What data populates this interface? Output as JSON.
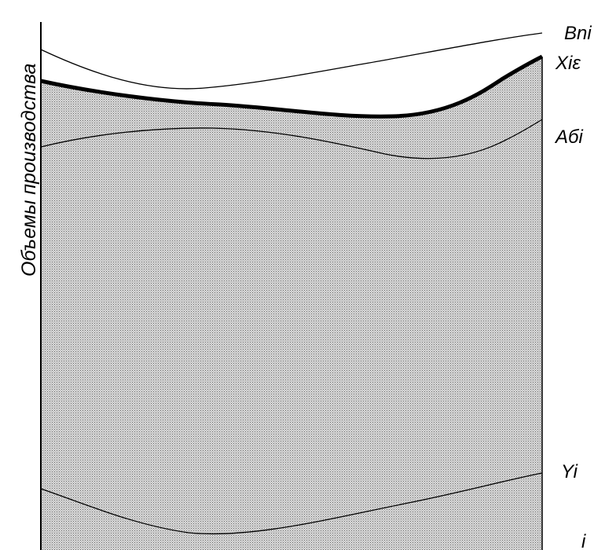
{
  "diagram": {
    "y_axis_label": "Объемы производства",
    "curve_labels": {
      "upper_thin": "Bni",
      "thick": "Xiε",
      "middle": "Aбi",
      "lower": "Yi",
      "bottom": "i"
    },
    "colors": {
      "background": "#ffffff",
      "fill": "#d6d6d6",
      "stipple": "#7a7a7a",
      "line": "#000000"
    }
  }
}
